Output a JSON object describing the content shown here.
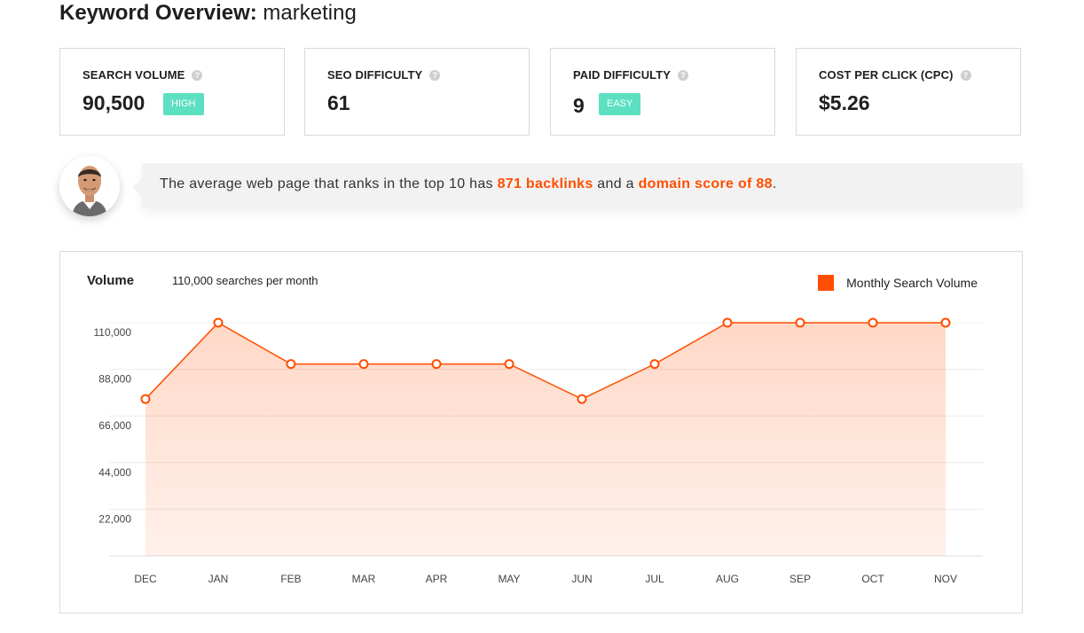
{
  "page": {
    "title_bold": "Keyword Overview:",
    "keyword": "marketing"
  },
  "cards": [
    {
      "label": "SEARCH VOLUME",
      "value": "90,500",
      "badge": "HIGH"
    },
    {
      "label": "SEO DIFFICULTY",
      "value": "61"
    },
    {
      "label": "PAID DIFFICULTY",
      "value": "9",
      "badge": "EASY"
    },
    {
      "label": "COST PER CLICK (CPC)",
      "value": "$5.26"
    }
  ],
  "help_glyph": "?",
  "banner": {
    "text_before": "The average web page that ranks in the top 10 has ",
    "backlinks": "871 backlinks",
    "text_middle": " and a ",
    "domain_score": "domain score of 88",
    "text_after": "."
  },
  "colors": {
    "accent": "#ff4e00",
    "badge": "#5ce0c1"
  },
  "chart_data": {
    "type": "area",
    "title": "Volume",
    "subtitle": "110,000 searches per month",
    "legend": "Monthly Search Volume",
    "legend_position": "top-right",
    "x": [
      "DEC",
      "JAN",
      "FEB",
      "MAR",
      "APR",
      "MAY",
      "JUN",
      "JUL",
      "AUG",
      "SEP",
      "OCT",
      "NOV"
    ],
    "y_ticks": [
      22000,
      44000,
      66000,
      88000,
      110000
    ],
    "y_tick_labels": [
      "22,000",
      "44,000",
      "66,000",
      "88,000",
      "110,000"
    ],
    "ylim": [
      0,
      110000
    ],
    "grid": true,
    "series": [
      {
        "name": "Monthly Search Volume",
        "values": [
          74000,
          110000,
          90500,
          90500,
          90500,
          90500,
          74000,
          90500,
          110000,
          110000,
          110000,
          110000
        ]
      }
    ]
  }
}
